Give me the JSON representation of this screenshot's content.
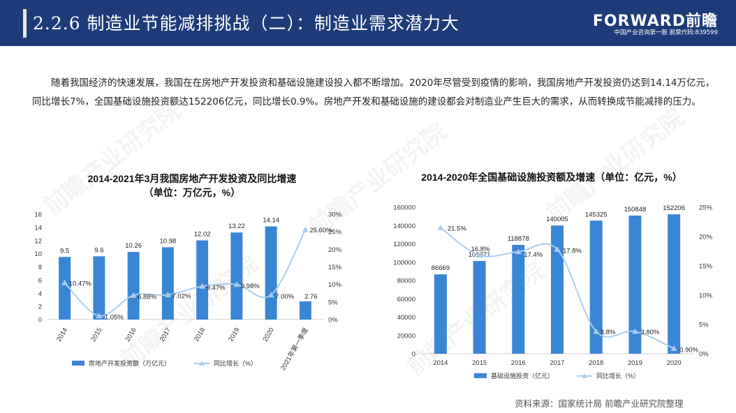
{
  "header": {
    "title": "2.2.6 制造业节能减排挑战（二）：制造业需求潜力大",
    "logo": "FORWARD前瞻",
    "logo_sub": "中国产业咨询第一股 股票代码:839599"
  },
  "intro": "随着我国经济的快速发展，我国在在房地产开发投资和基础设施建设投入都不断增加。2020年尽管受到疫情的影响，我国房地产开发投资仍达到14.14万亿元，同比增长7%，全国基础设施投资额达152206亿元，同比增长0.9%。房地产开发和基础设施的建设都会对制造业产生巨大的需求，从而转换成节能减排的压力。",
  "watermark": "前瞻产业研究院",
  "source": "资料来源：国家统计局 前瞻产业研究院整理",
  "colors": {
    "header_bg": "#1c3b78",
    "bar": "#3b85d6",
    "line": "#a9cdee"
  },
  "chart_data": [
    {
      "type": "bar",
      "title_line1": "2014-2021年3月我国房地产开发投资及同比增速",
      "title_line2": "（单位：万亿元，%）",
      "categories": [
        "2014",
        "2015",
        "2016",
        "2017",
        "2018",
        "2019",
        "2020",
        "2021年第一季度"
      ],
      "ylim": [
        0,
        16
      ],
      "yticks": [
        "0",
        "2",
        "4",
        "6",
        "8",
        "10",
        "12",
        "14",
        "16"
      ],
      "y2lim": [
        0,
        30
      ],
      "y2ticks": [
        "0%",
        "5%",
        "10%",
        "15%",
        "20%",
        "25%",
        "30%"
      ],
      "series": [
        {
          "name": "房地产开发投资额（万亿元）",
          "kind": "bar",
          "axis": "left",
          "values": [
            9.5,
            9.6,
            10.26,
            10.98,
            12.02,
            13.22,
            14.14,
            2.76
          ],
          "labels": [
            "9.5",
            "9.6",
            "10.26",
            "10.98",
            "12.02",
            "13.22",
            "14.14",
            "2.76"
          ]
        },
        {
          "name": "同比增长（%）",
          "kind": "line",
          "axis": "right",
          "values": [
            10.47,
            1.05,
            6.88,
            7.02,
            9.47,
            9.98,
            7.0,
            25.6
          ],
          "labels": [
            "10.47%",
            "1.05%",
            "6.88%",
            "7.02%",
            "9.47%",
            "9.98%",
            "7.00%",
            "25.60%"
          ]
        }
      ]
    },
    {
      "type": "bar",
      "title_line1": "2014-2020年全国基础设施投资额及增速（单位：亿元，%）",
      "categories": [
        "2014",
        "2015",
        "2016",
        "2017",
        "2018",
        "2019",
        "2020"
      ],
      "ylim": [
        0,
        160000
      ],
      "yticks": [
        "0",
        "20000",
        "40000",
        "60000",
        "80000",
        "100000",
        "120000",
        "140000",
        "160000"
      ],
      "y2lim": [
        0,
        25
      ],
      "y2ticks": [
        "0%",
        "5%",
        "10%",
        "15%",
        "20%",
        "25%"
      ],
      "series": [
        {
          "name": "基础设施投资（亿元）",
          "kind": "bar",
          "axis": "left",
          "values": [
            86669,
            101271,
            118878,
            140005,
            145325,
            150848,
            152206
          ],
          "labels": [
            "86669",
            "101271",
            "118878",
            "140005",
            "145325",
            "150848",
            "152206"
          ]
        },
        {
          "name": "同比增长（%）",
          "kind": "line",
          "axis": "right",
          "values": [
            21.5,
            16.8,
            17.4,
            17.8,
            3.8,
            3.8,
            0.9
          ],
          "labels": [
            "21.5%",
            "16.8%",
            "17.4%",
            "17.8%",
            "3.8%",
            "3.80%",
            "0.90%"
          ]
        }
      ]
    }
  ]
}
